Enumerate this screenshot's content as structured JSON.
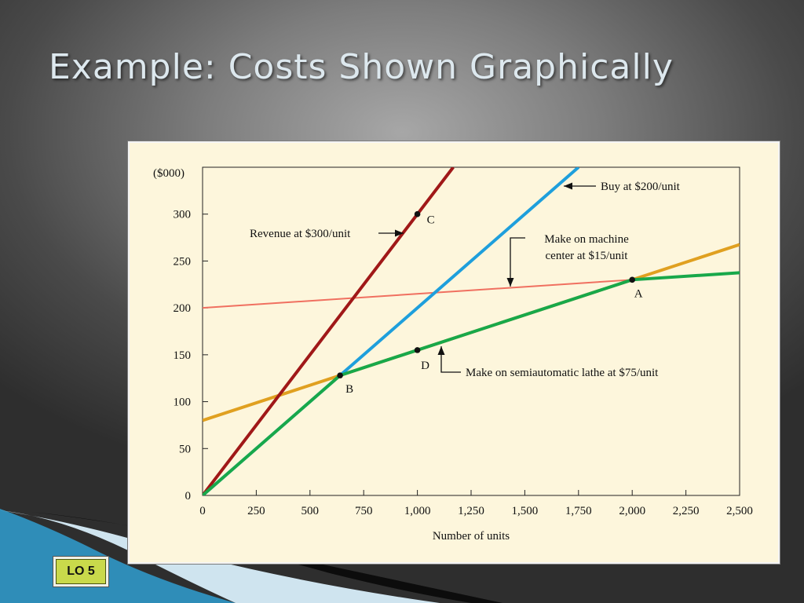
{
  "slide": {
    "title": "Example: Costs Shown Graphically",
    "badge": "LO 5"
  },
  "chart_data": {
    "type": "line",
    "xlabel": "Number of units",
    "ylabel": "($000)",
    "xlim": [
      0,
      2500
    ],
    "ylim": [
      0,
      350
    ],
    "xticks": [
      0,
      250,
      500,
      750,
      1000,
      1250,
      1500,
      1750,
      2000,
      2250,
      2500
    ],
    "xtick_labels": [
      "0",
      "250",
      "500",
      "750",
      "1,000",
      "1,250",
      "1,500",
      "1,750",
      "2,000",
      "2,250",
      "2,500"
    ],
    "yticks": [
      0,
      50,
      100,
      150,
      200,
      250,
      300
    ],
    "ytick_labels": [
      "0",
      "50",
      "100",
      "150",
      "200",
      "250",
      "300"
    ],
    "grid": false,
    "series": [
      {
        "name": "Revenue at $300/unit",
        "color": "#a01818",
        "x": [
          0,
          1167
        ],
        "y": [
          0,
          350
        ]
      },
      {
        "name": "Buy at $200/unit",
        "color": "#1e9fdc",
        "x": [
          0,
          1750
        ],
        "y": [
          0,
          350
        ]
      },
      {
        "name": "Make on machine center at $15/unit",
        "color": "#f07060",
        "x": [
          0,
          2000
        ],
        "y": [
          200,
          230
        ]
      },
      {
        "name": "Make on semiautomatic lathe at $75/unit",
        "color": "#18a84a",
        "x": [
          0,
          2500
        ],
        "y": [
          80,
          267.5
        ]
      },
      {
        "color": "#e0a020",
        "x": [
          0,
          2500
        ],
        "y": [
          80,
          267.5
        ]
      }
    ],
    "optimal_path": {
      "color": "#18a84a",
      "x": [
        0,
        640,
        2000,
        2500
      ],
      "y": [
        0,
        128,
        230,
        237.5
      ]
    },
    "points": [
      {
        "label": "A",
        "x": 2000,
        "y": 230
      },
      {
        "label": "B",
        "x": 640,
        "y": 128
      },
      {
        "label": "C",
        "x": 1000,
        "y": 300
      },
      {
        "label": "D",
        "x": 1000,
        "y": 155
      }
    ],
    "annotations": [
      {
        "text": "Revenue at $300/unit"
      },
      {
        "text": "Buy at $200/unit"
      },
      {
        "text": "Make on machine"
      },
      {
        "text": "center at $15/unit"
      },
      {
        "text": "Make on semiautomatic lathe at $75/unit"
      }
    ]
  }
}
